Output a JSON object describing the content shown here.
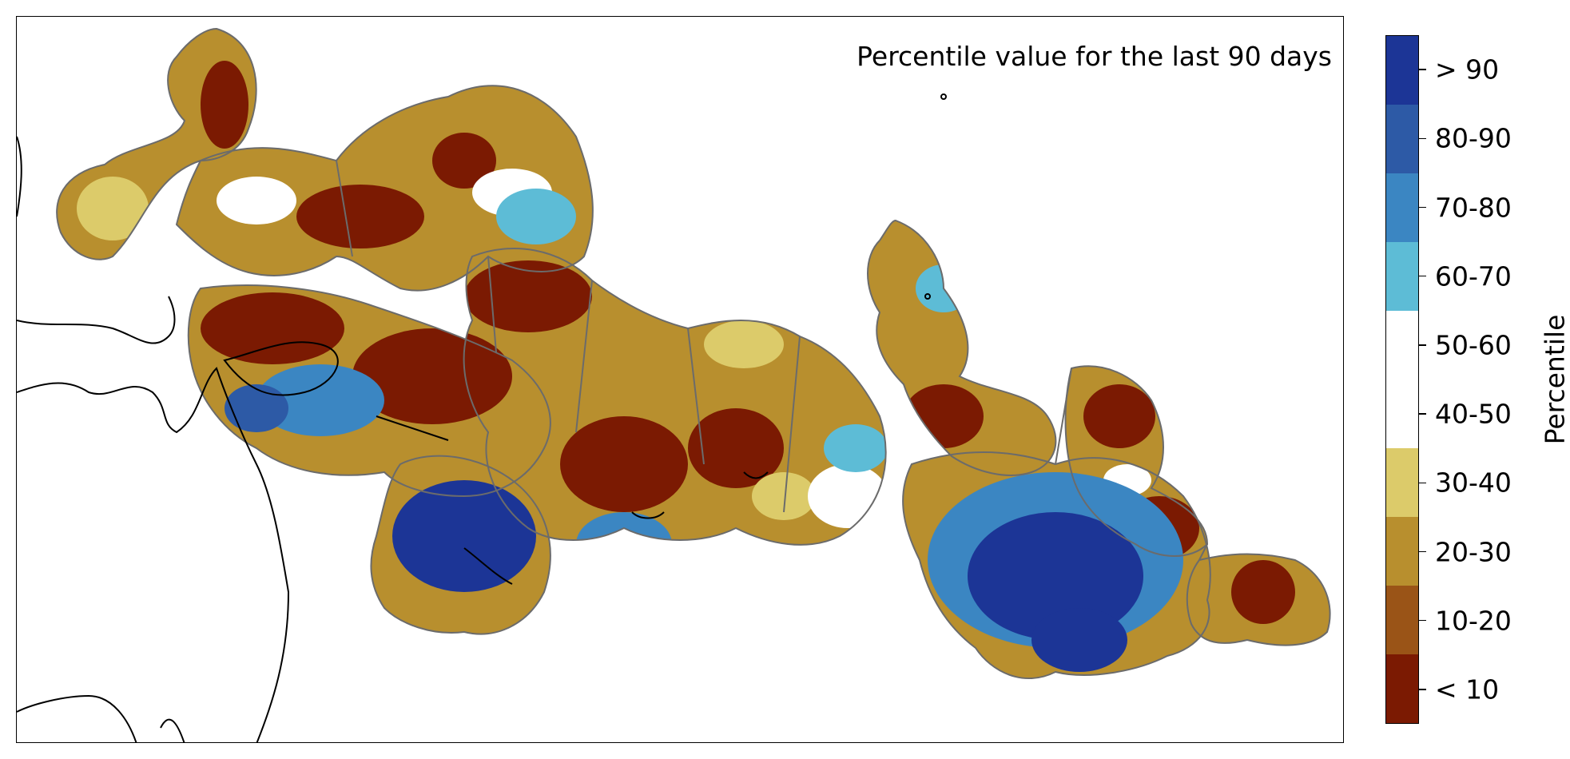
{
  "map": {
    "title": "Percentile value for the last 90 days"
  },
  "legend": {
    "title": "Percentile",
    "categories": [
      {
        "label": "> 90",
        "color": "#1c3596"
      },
      {
        "label": "80-90",
        "color": "#2d5aa6"
      },
      {
        "label": "70-80",
        "color": "#3b86c2"
      },
      {
        "label": "60-70",
        "color": "#5dbcd6"
      },
      {
        "label": "50-60",
        "color": "#ffffff"
      },
      {
        "label": "40-50",
        "color": "#ffffff"
      },
      {
        "label": "30-40",
        "color": "#dccb6a"
      },
      {
        "label": "20-30",
        "color": "#b88f2e"
      },
      {
        "label": "10-20",
        "color": "#9a5417"
      },
      {
        "label": "< 10",
        "color": "#7b1a02"
      }
    ]
  }
}
